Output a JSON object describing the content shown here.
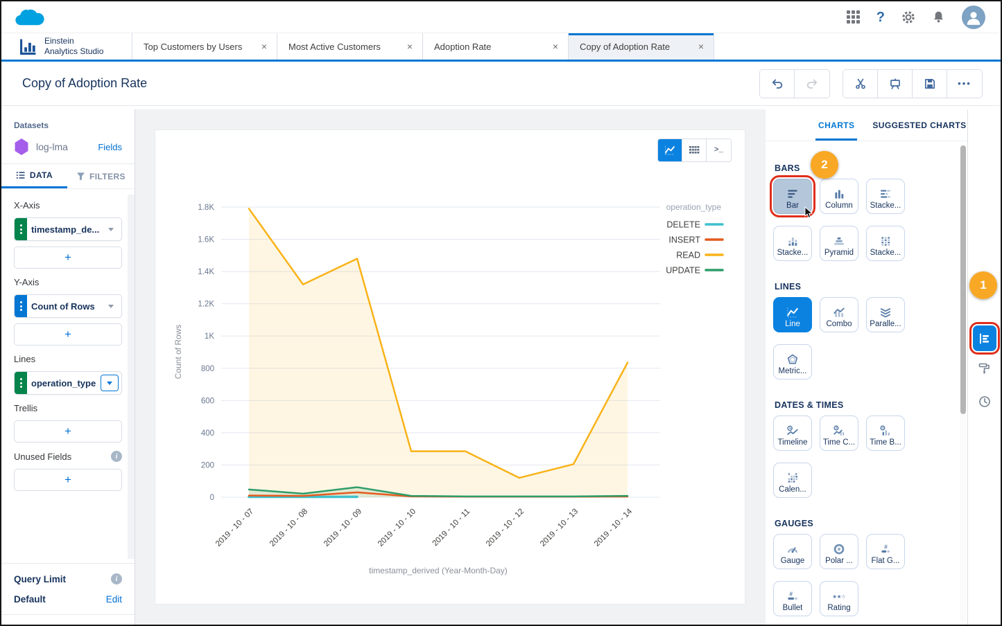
{
  "header": {
    "help_glyph": "?",
    "icons": [
      "app-launcher",
      "help",
      "setup",
      "notifications",
      "avatar"
    ]
  },
  "tabbar": {
    "brand": {
      "line1": "Einstein",
      "line2": "Analytics Studio"
    },
    "close_glyph": "×",
    "tabs": [
      {
        "label": "Top Customers by Users",
        "active": false
      },
      {
        "label": "Most Active Customers",
        "active": false
      },
      {
        "label": "Adoption Rate",
        "active": false
      },
      {
        "label": "Copy of Adoption Rate",
        "active": true
      }
    ]
  },
  "titlebar": {
    "title": "Copy of Adoption Rate",
    "more_glyph": "•••",
    "buttons": [
      "undo",
      "redo",
      "cut",
      "present",
      "save",
      "more"
    ]
  },
  "sidebar": {
    "datasets_label": "Datasets",
    "dataset_name": "log-lma",
    "fields_link": "Fields",
    "tabs": {
      "data": "DATA",
      "filters": "FILTERS"
    },
    "x_axis": {
      "label": "X-Axis",
      "field": "timestamp_de...",
      "handle_color": "#04844b"
    },
    "y_axis": {
      "label": "Y-Axis",
      "field": "Count of Rows",
      "handle_color": "#0176d3"
    },
    "lines": {
      "label": "Lines",
      "field": "operation_type",
      "handle_color": "#04844b"
    },
    "trellis_label": "Trellis",
    "unused_label": "Unused Fields",
    "add_glyph": "+",
    "query_limit": {
      "label": "Query Limit",
      "value_label": "Default",
      "edit_link": "Edit"
    }
  },
  "canvas": {
    "modes": [
      "chart",
      "table",
      "sql"
    ],
    "active_mode": "chart",
    "sql_glyph": ">_"
  },
  "chart_data": {
    "type": "line",
    "x": [
      "2019 - 10 - 07",
      "2019 - 10 - 08",
      "2019 - 10 - 09",
      "2019 - 10 - 10",
      "2019 - 10 - 11",
      "2019 - 10 - 12",
      "2019 - 10 - 13",
      "2019 - 10 - 14"
    ],
    "series": [
      {
        "name": "DELETE",
        "color": "#3fc0cd",
        "width": 3.5,
        "values": [
          2,
          2,
          2,
          null,
          null,
          null,
          null,
          null
        ]
      },
      {
        "name": "INSERT",
        "color": "#e45b1e",
        "width": 2.5,
        "values": [
          10,
          8,
          30,
          5,
          3,
          3,
          3,
          4
        ]
      },
      {
        "name": "READ",
        "color": "#f9b218",
        "width": 2.5,
        "fill": true,
        "fill_opacity": 0.12,
        "values": [
          1790,
          1320,
          1480,
          285,
          285,
          120,
          205,
          835
        ]
      },
      {
        "name": "UPDATE",
        "color": "#2e9c69",
        "width": 2.5,
        "fill": true,
        "fill_opacity": 0.14,
        "values": [
          48,
          22,
          62,
          8,
          5,
          5,
          5,
          8
        ]
      }
    ],
    "legend_title": "operation_type",
    "legend_position": "right",
    "grid": true,
    "xlabel": "timestamp_derived (Year-Month-Day)",
    "ylabel": "Count of Rows",
    "ylim": [
      0,
      1800
    ],
    "yticks": [
      0,
      200,
      400,
      600,
      800,
      1000,
      1200,
      1400,
      1600,
      1800
    ],
    "ytick_labels": [
      "0",
      "200",
      "400",
      "600",
      "800",
      "1K",
      "1.2K",
      "1.4K",
      "1.6K",
      "1.8K"
    ]
  },
  "right_panel": {
    "tabs": [
      {
        "label": "CHARTS",
        "active": true
      },
      {
        "label": "SUGGESTED CHARTS",
        "active": false
      }
    ],
    "sections": [
      {
        "title": "BARS",
        "items": [
          {
            "label": "Bar",
            "icon": "bar",
            "state": "highlighted"
          },
          {
            "label": "Column",
            "icon": "column"
          },
          {
            "label": "Stacke...",
            "icon": "stacked-bar"
          },
          {
            "label": "Stacke...",
            "icon": "stacked-column"
          },
          {
            "label": "Pyramid",
            "icon": "pyramid"
          },
          {
            "label": "Stacke...",
            "icon": "stacked-100"
          }
        ]
      },
      {
        "title": "LINES",
        "items": [
          {
            "label": "Line",
            "icon": "line",
            "state": "active"
          },
          {
            "label": "Combo",
            "icon": "combo"
          },
          {
            "label": "Paralle...",
            "icon": "parallel"
          },
          {
            "label": "Metric...",
            "icon": "metrics"
          }
        ]
      },
      {
        "title": "DATES & TIMES",
        "items": [
          {
            "label": "Timeline",
            "icon": "timeline"
          },
          {
            "label": "Time C...",
            "icon": "time-combo"
          },
          {
            "label": "Time B...",
            "icon": "time-bar"
          },
          {
            "label": "Calen...",
            "icon": "calendar"
          }
        ]
      },
      {
        "title": "GAUGES",
        "items": [
          {
            "label": "Gauge",
            "icon": "gauge"
          },
          {
            "label": "Polar ...",
            "icon": "polar"
          },
          {
            "label": "Flat G...",
            "icon": "flat-gauge"
          },
          {
            "label": "Bullet",
            "icon": "bullet"
          },
          {
            "label": "Rating",
            "icon": "rating"
          }
        ]
      }
    ]
  },
  "annotations": {
    "step1": "1",
    "step2": "2",
    "red_color": "#df2e1b",
    "orange_color": "#f9a825"
  }
}
